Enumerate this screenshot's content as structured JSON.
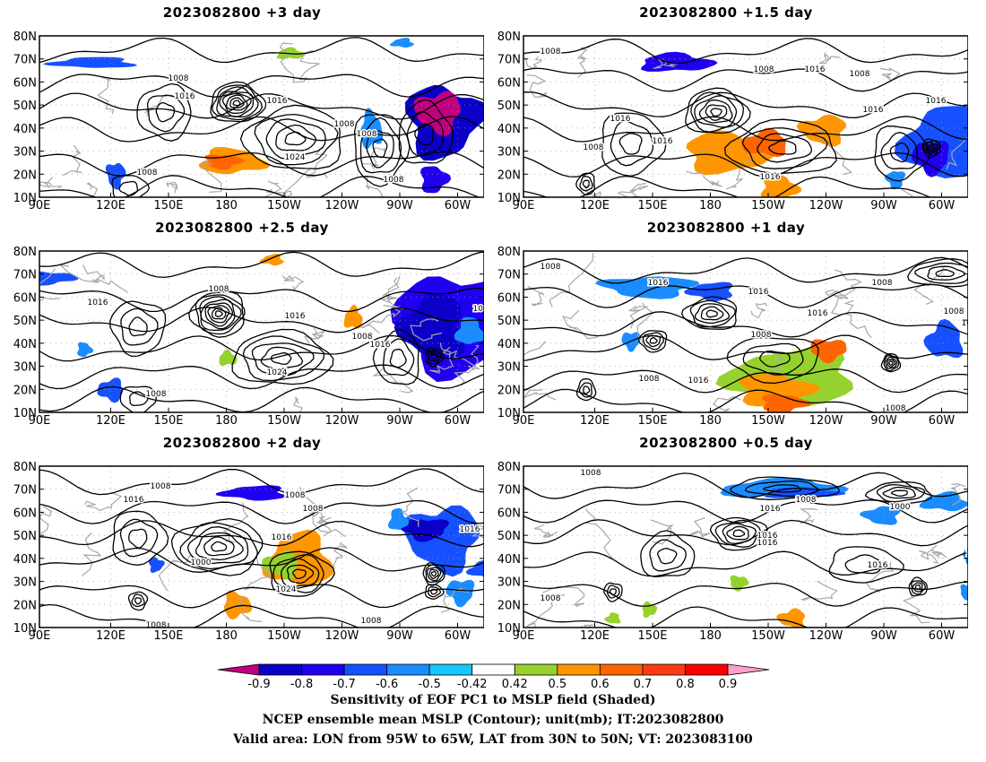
{
  "panels": [
    {
      "title": "2023082800  +3  day"
    },
    {
      "title": "2023082800  +1.5  day"
    },
    {
      "title": "2023082800  +2.5  day"
    },
    {
      "title": "2023082800  +1  day"
    },
    {
      "title": "2023082800  +2  day"
    },
    {
      "title": "2023082800  +0.5  day"
    }
  ],
  "axes": {
    "lat_labels": [
      "80N",
      "70N",
      "60N",
      "50N",
      "40N",
      "30N",
      "20N",
      "10N"
    ],
    "lon_labels": [
      "90E",
      "120E",
      "150E",
      "180",
      "150W",
      "120W",
      "90W",
      "60W"
    ]
  },
  "contour_labels": [
    "1008",
    "1016",
    "1024",
    "1000"
  ],
  "colorbar": {
    "labels": [
      "-0.9",
      "-0.8",
      "-0.7",
      "-0.6",
      "-0.5",
      "-0.42",
      "0.42",
      "0.5",
      "0.6",
      "0.7",
      "0.8",
      "0.9"
    ],
    "colors": [
      "#c0007f",
      "#0a00c8",
      "#2000f0",
      "#1650ff",
      "#1a8cff",
      "#14c8ff",
      "#ffffff",
      "#96d22d",
      "#ff9600",
      "#ff6400",
      "#ff3c14",
      "#ff0000",
      "#ffa0c8"
    ]
  },
  "footer": {
    "line1": "Sensitivity of EOF PC1 to MSLP field (Shaded)",
    "line2": "NCEP ensemble mean MSLP (Contour); unit(mb); IT:2023082800",
    "line3": "Valid area: LON from 95W to 65W, LAT from 30N to 50N; VT: 2023083100"
  }
}
